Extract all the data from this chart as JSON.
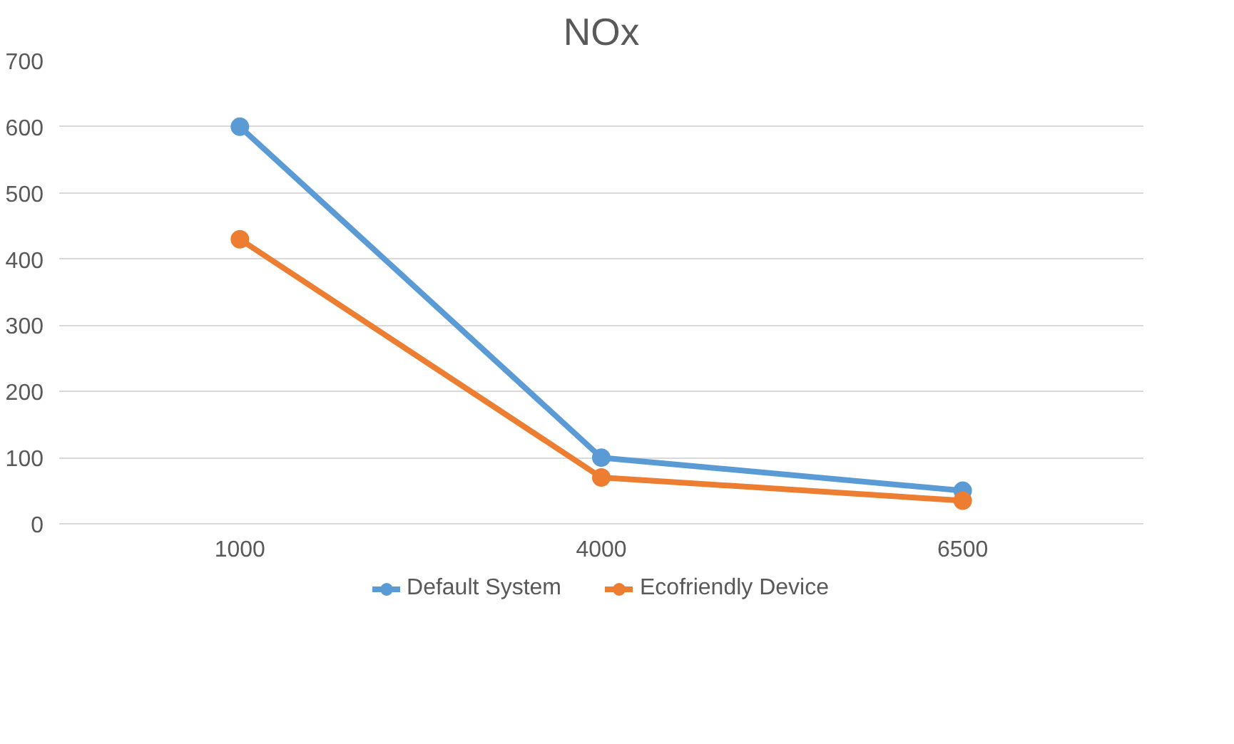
{
  "chart_data": {
    "type": "line",
    "title": "NOx",
    "categories": [
      "1000",
      "4000",
      "6500"
    ],
    "series": [
      {
        "name": "Default System",
        "color": "#5b9bd5",
        "values": [
          600,
          100,
          50
        ]
      },
      {
        "name": "Ecofriendly Device",
        "color": "#ed7d31",
        "values": [
          430,
          70,
          35
        ]
      }
    ],
    "ylim": [
      0,
      700
    ],
    "yticks": [
      0,
      100,
      200,
      300,
      400,
      500,
      600,
      700
    ],
    "grid": "y",
    "legend": "bottom",
    "marker": "circle",
    "line_style": "solid"
  }
}
